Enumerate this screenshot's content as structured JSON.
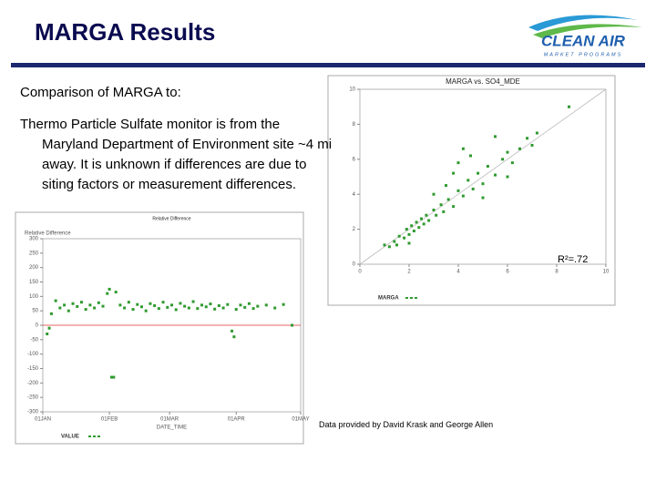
{
  "header": {
    "title": "MARGA Results",
    "logo": "CLEAN AIR",
    "logo_sub": "MARKET PROGRAMS"
  },
  "text": {
    "intro": "Comparison of MARGA to:",
    "bullet": "Thermo Particle Sulfate monitor is from the Maryland Department of Environment site ~4 mi away.  It is unknown if differences are due to siting factors or measurement differences.",
    "r2": "R²=.72",
    "credit": "Data provided by David Krask and George Allen"
  },
  "chart_data": [
    {
      "type": "scatter",
      "title": "MARGA vs. SO4_MDE",
      "xlim": [
        0,
        10
      ],
      "xticks": [
        0,
        2,
        4,
        6,
        8,
        10
      ],
      "ylim": [
        0,
        10
      ],
      "yticks": [
        0,
        2,
        4,
        6,
        8,
        10
      ],
      "diagonal": true,
      "series": [
        {
          "name": "MARGA",
          "color": "#2f9a2f",
          "x": [
            1.2,
            1.4,
            1.5,
            1.6,
            1.8,
            1.9,
            2.0,
            2.1,
            2.2,
            2.3,
            2.4,
            2.5,
            2.6,
            2.7,
            2.8,
            3.0,
            3.1,
            3.3,
            3.4,
            3.6,
            3.8,
            4.0,
            4.2,
            4.4,
            4.6,
            4.8,
            5.0,
            5.2,
            5.5,
            5.8,
            6.0,
            6.2,
            6.5,
            6.8,
            7.0,
            7.2,
            3.5,
            3.8,
            4.0,
            4.5,
            4.2,
            3.0,
            5.5,
            2.0,
            1.0,
            8.5,
            5.0,
            6.0
          ],
          "values": [
            1.0,
            1.3,
            1.1,
            1.6,
            1.5,
            2.0,
            1.7,
            2.2,
            1.9,
            2.4,
            2.1,
            2.6,
            2.3,
            2.8,
            2.5,
            3.1,
            2.8,
            3.4,
            3.0,
            3.7,
            3.3,
            4.2,
            3.9,
            4.8,
            4.3,
            5.2,
            4.6,
            5.6,
            5.1,
            6.0,
            6.4,
            5.8,
            6.6,
            7.2,
            6.8,
            7.5,
            4.5,
            5.2,
            5.8,
            6.2,
            6.6,
            4.0,
            7.3,
            1.2,
            1.1,
            9.0,
            3.8,
            5.0
          ]
        }
      ]
    },
    {
      "type": "scatter",
      "title": "Relative Difference",
      "y_label": "Relative Difference",
      "x_label": "DATE_TIME",
      "xlim": [
        0,
        120
      ],
      "xticks": [
        {
          "value": 0,
          "label": "01JAN"
        },
        {
          "value": 31,
          "label": "01FEB"
        },
        {
          "value": 59,
          "label": "01MAR"
        },
        {
          "value": 90,
          "label": "01APR"
        },
        {
          "value": 120,
          "label": "01MAY"
        }
      ],
      "ylim": [
        -300,
        300
      ],
      "yticks": [
        -300,
        -250,
        -200,
        -150,
        -100,
        -50,
        0,
        50,
        100,
        150,
        200,
        250,
        300
      ],
      "reference_line": 0,
      "reference_color": "#e03030",
      "series": [
        {
          "name": "VALUE",
          "color": "#2f9a2f",
          "x": [
            2,
            3,
            4,
            6,
            8,
            10,
            12,
            14,
            16,
            18,
            20,
            22,
            24,
            26,
            28,
            30,
            31,
            32,
            33,
            34,
            36,
            38,
            40,
            42,
            44,
            46,
            48,
            50,
            52,
            54,
            56,
            58,
            60,
            62,
            64,
            66,
            68,
            70,
            72,
            74,
            76,
            78,
            80,
            82,
            84,
            86,
            88,
            89,
            90,
            92,
            94,
            96,
            98,
            100,
            104,
            108,
            112,
            116
          ],
          "values": [
            -30,
            -10,
            40,
            85,
            60,
            70,
            50,
            75,
            65,
            80,
            55,
            70,
            60,
            78,
            66,
            110,
            125,
            -180,
            -180,
            115,
            70,
            60,
            80,
            55,
            72,
            64,
            50,
            75,
            68,
            58,
            80,
            62,
            70,
            54,
            76,
            66,
            60,
            82,
            58,
            70,
            64,
            74,
            56,
            68,
            60,
            72,
            -20,
            -40,
            55,
            70,
            62,
            75,
            58,
            66,
            70,
            60,
            72,
            0
          ]
        }
      ]
    }
  ]
}
